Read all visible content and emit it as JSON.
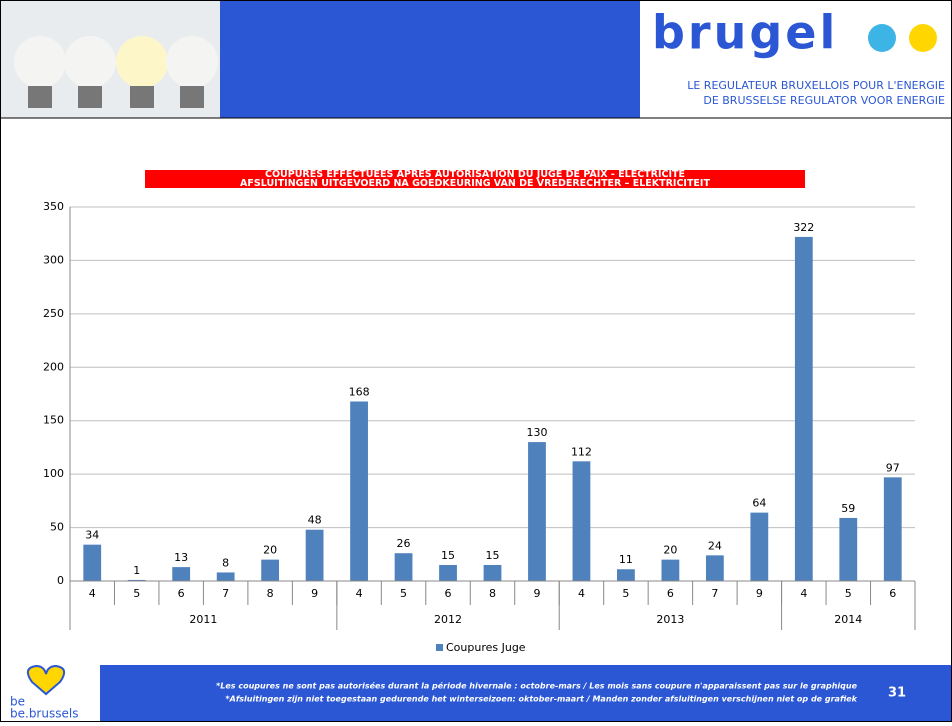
{
  "header": {
    "logo_text": "brugel",
    "tagline": [
      "LE REGULATEUR BRUXELLOIS POUR L'ENERGIE",
      "DE BRUSSELSE REGULATOR VOOR ENERGIE"
    ]
  },
  "chart_data": {
    "type": "bar",
    "title": [
      "COUPURES EFFECTUÉES APRÈS AUTORISATION DU JUGE DE PAIX - ÉLECTRICITÉ",
      "AFSLUITINGEN UITGEVOERD NA GOEDKEURING VAN DE VREDERECHTER – ELEKTRICITEIT"
    ],
    "groups": [
      {
        "name": "2011",
        "categories": [
          "4",
          "5",
          "6",
          "7",
          "8",
          "9"
        ]
      },
      {
        "name": "2012",
        "categories": [
          "4",
          "5",
          "6",
          "8",
          "9"
        ]
      },
      {
        "name": "2013",
        "categories": [
          "4",
          "5",
          "6",
          "7",
          "9"
        ]
      },
      {
        "name": "2014",
        "categories": [
          "4",
          "5",
          "6"
        ]
      }
    ],
    "series": [
      {
        "name": "Coupures Juge",
        "color": "#4f81bd",
        "values": [
          34,
          1,
          13,
          8,
          20,
          48,
          168,
          26,
          15,
          15,
          130,
          112,
          11,
          20,
          24,
          64,
          322,
          59,
          97
        ]
      }
    ],
    "ylim": [
      0,
      350
    ],
    "yticks": [
      0,
      50,
      100,
      150,
      200,
      250,
      300,
      350
    ],
    "grid": true,
    "legend": "bottom"
  },
  "footer": {
    "notes": [
      "*Les coupures ne sont pas autorisées durant la période hivernale : octobre-mars / Les mois sans coupure n'apparaissent pas sur le graphique",
      "*Afsluitingen zijn niet  toegestaan gedurende het winterseizoen: oktober-maart / Manden zonder afsluitingen verschijnen niet op de grafiek"
    ],
    "page_number": "31",
    "brand_top": "be",
    "brand": "be.brussels"
  }
}
